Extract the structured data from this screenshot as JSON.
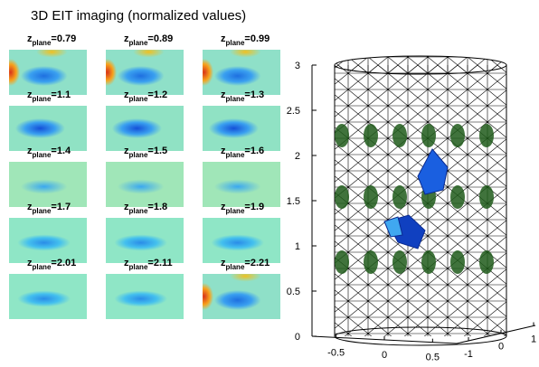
{
  "title": "3D EIT imaging (normalized values)",
  "panels": [
    {
      "label": "z",
      "sub": "plane",
      "value": "=0.79"
    },
    {
      "label": "z",
      "sub": "plane",
      "value": "=0.89"
    },
    {
      "label": "z",
      "sub": "plane",
      "value": "=0.99"
    },
    {
      "label": "z",
      "sub": "plane",
      "value": "=1.1"
    },
    {
      "label": "z",
      "sub": "plane",
      "value": "=1.2"
    },
    {
      "label": "z",
      "sub": "plane",
      "value": "=1.3"
    },
    {
      "label": "z",
      "sub": "plane",
      "value": "=1.4"
    },
    {
      "label": "z",
      "sub": "plane",
      "value": "=1.5"
    },
    {
      "label": "z",
      "sub": "plane",
      "value": "=1.6"
    },
    {
      "label": "z",
      "sub": "plane",
      "value": "=1.7"
    },
    {
      "label": "z",
      "sub": "plane",
      "value": "=1.8"
    },
    {
      "label": "z",
      "sub": "plane",
      "value": "=1.9"
    },
    {
      "label": "z",
      "sub": "plane",
      "value": "=2.01"
    },
    {
      "label": "z",
      "sub": "plane",
      "value": "=2.11"
    },
    {
      "label": "z",
      "sub": "plane",
      "value": "=2.21"
    }
  ],
  "mesh": {
    "zlim": [
      0,
      3
    ],
    "zticks": [
      0,
      0.5,
      1,
      1.5,
      2,
      2.5,
      3
    ],
    "xlim": [
      -0.75,
      0.75
    ],
    "xticks": [
      -0.5,
      0,
      0.5
    ],
    "ylim": [
      -1,
      1
    ],
    "yticks": [
      -1,
      0,
      1
    ]
  }
}
